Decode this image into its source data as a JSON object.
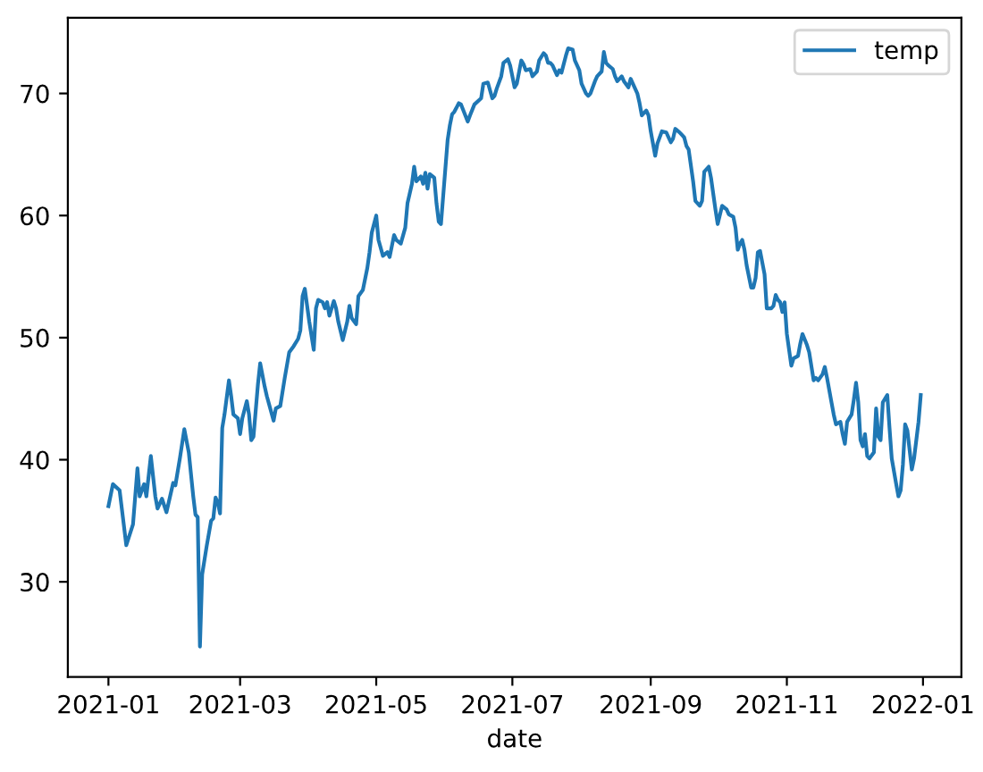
{
  "chart_data": {
    "type": "line",
    "xlabel": "date",
    "legend": "top right",
    "grid": false,
    "x": [
      "2021-01-01",
      "2021-01-03",
      "2021-01-06",
      "2021-01-09",
      "2021-01-12",
      "2021-01-14",
      "2021-01-15",
      "2021-01-17",
      "2021-01-18",
      "2021-01-20",
      "2021-01-22",
      "2021-01-23",
      "2021-01-25",
      "2021-01-27",
      "2021-01-30",
      "2021-01-31",
      "2021-02-02",
      "2021-02-04",
      "2021-02-06",
      "2021-02-08",
      "2021-02-09",
      "2021-02-10",
      "2021-02-11",
      "2021-02-12",
      "2021-02-14",
      "2021-02-16",
      "2021-02-17",
      "2021-02-18",
      "2021-02-19",
      "2021-02-20",
      "2021-02-21",
      "2021-02-22",
      "2021-02-24",
      "2021-02-25",
      "2021-02-26",
      "2021-02-28",
      "2021-03-01",
      "2021-03-02",
      "2021-03-04",
      "2021-03-05",
      "2021-03-06",
      "2021-03-07",
      "2021-03-09",
      "2021-03-10",
      "2021-03-12",
      "2021-03-13",
      "2021-03-16",
      "2021-03-17",
      "2021-03-19",
      "2021-03-21",
      "2021-03-23",
      "2021-03-25",
      "2021-03-27",
      "2021-03-28",
      "2021-03-29",
      "2021-03-30",
      "2021-04-01",
      "2021-04-03",
      "2021-04-04",
      "2021-04-05",
      "2021-04-07",
      "2021-04-08",
      "2021-04-09",
      "2021-04-10",
      "2021-04-12",
      "2021-04-13",
      "2021-04-14",
      "2021-04-16",
      "2021-04-18",
      "2021-04-19",
      "2021-04-20",
      "2021-04-22",
      "2021-04-23",
      "2021-04-25",
      "2021-04-27",
      "2021-04-28",
      "2021-04-29",
      "2021-05-01",
      "2021-05-02",
      "2021-05-04",
      "2021-05-06",
      "2021-05-07",
      "2021-05-09",
      "2021-05-10",
      "2021-05-12",
      "2021-05-14",
      "2021-05-15",
      "2021-05-17",
      "2021-05-18",
      "2021-05-19",
      "2021-05-21",
      "2021-05-22",
      "2021-05-23",
      "2021-05-24",
      "2021-05-25",
      "2021-05-27",
      "2021-05-28",
      "2021-05-29",
      "2021-05-30",
      "2021-05-31",
      "2021-06-02",
      "2021-06-03",
      "2021-06-04",
      "2021-06-05",
      "2021-06-07",
      "2021-06-08",
      "2021-06-11",
      "2021-06-12",
      "2021-06-14",
      "2021-06-17",
      "2021-06-18",
      "2021-06-20",
      "2021-06-22",
      "2021-06-23",
      "2021-06-24",
      "2021-06-26",
      "2021-06-27",
      "2021-06-29",
      "2021-06-30",
      "2021-07-02",
      "2021-07-03",
      "2021-07-05",
      "2021-07-06",
      "2021-07-07",
      "2021-07-09",
      "2021-07-10",
      "2021-07-12",
      "2021-07-13",
      "2021-07-15",
      "2021-07-16",
      "2021-07-17",
      "2021-07-18",
      "2021-07-19",
      "2021-07-21",
      "2021-07-22",
      "2021-07-23",
      "2021-07-25",
      "2021-07-26",
      "2021-07-28",
      "2021-07-29",
      "2021-07-31",
      "2021-08-01",
      "2021-08-03",
      "2021-08-04",
      "2021-08-05",
      "2021-08-07",
      "2021-08-08",
      "2021-08-10",
      "2021-08-11",
      "2021-08-12",
      "2021-08-13",
      "2021-08-15",
      "2021-08-16",
      "2021-08-17",
      "2021-08-19",
      "2021-08-20",
      "2021-08-22",
      "2021-08-23",
      "2021-08-24",
      "2021-08-26",
      "2021-08-27",
      "2021-08-28",
      "2021-08-30",
      "2021-08-31",
      "2021-09-01",
      "2021-09-03",
      "2021-09-04",
      "2021-09-06",
      "2021-09-08",
      "2021-09-10",
      "2021-09-11",
      "2021-09-12",
      "2021-09-14",
      "2021-09-16",
      "2021-09-17",
      "2021-09-18",
      "2021-09-20",
      "2021-09-21",
      "2021-09-23",
      "2021-09-24",
      "2021-09-25",
      "2021-09-27",
      "2021-09-28",
      "2021-09-30",
      "2021-10-01",
      "2021-10-03",
      "2021-10-05",
      "2021-10-06",
      "2021-10-08",
      "2021-10-09",
      "2021-10-10",
      "2021-10-11",
      "2021-10-12",
      "2021-10-13",
      "2021-10-14",
      "2021-10-16",
      "2021-10-17",
      "2021-10-18",
      "2021-10-19",
      "2021-10-20",
      "2021-10-22",
      "2021-10-23",
      "2021-10-25",
      "2021-10-26",
      "2021-10-27",
      "2021-10-28",
      "2021-10-29",
      "2021-10-30",
      "2021-10-31",
      "2021-11-01",
      "2021-11-03",
      "2021-11-04",
      "2021-11-06",
      "2021-11-07",
      "2021-11-08",
      "2021-11-10",
      "2021-11-11",
      "2021-11-13",
      "2021-11-14",
      "2021-11-15",
      "2021-11-17",
      "2021-11-18",
      "2021-11-19",
      "2021-11-21",
      "2021-11-22",
      "2021-11-23",
      "2021-11-25",
      "2021-11-26",
      "2021-11-27",
      "2021-11-28",
      "2021-11-30",
      "2021-12-01",
      "2021-12-02",
      "2021-12-03",
      "2021-12-04",
      "2021-12-05",
      "2021-12-06",
      "2021-12-07",
      "2021-12-08",
      "2021-12-10",
      "2021-12-11",
      "2021-12-12",
      "2021-12-13",
      "2021-12-14",
      "2021-12-16",
      "2021-12-17",
      "2021-12-18",
      "2021-12-20",
      "2021-12-21",
      "2021-12-22",
      "2021-12-23",
      "2021-12-24",
      "2021-12-25",
      "2021-12-27",
      "2021-12-28",
      "2021-12-29",
      "2021-12-30",
      "2021-12-31"
    ],
    "series": [
      {
        "name": "temp",
        "color": "#1f77b4",
        "values": [
          36.2,
          38.0,
          37.5,
          33.0,
          34.7,
          39.3,
          37.0,
          38.0,
          37.0,
          40.3,
          37.0,
          36.0,
          36.8,
          35.7,
          38.1,
          37.9,
          40.1,
          42.5,
          40.6,
          37.0,
          35.5,
          35.3,
          24.7,
          30.6,
          32.9,
          35.0,
          35.2,
          36.9,
          36.5,
          35.6,
          42.6,
          43.7,
          46.5,
          45.2,
          43.7,
          43.4,
          42.1,
          43.4,
          44.8,
          43.7,
          41.6,
          41.9,
          46.2,
          47.9,
          46.0,
          45.2,
          43.2,
          44.2,
          44.4,
          46.7,
          48.8,
          49.3,
          49.9,
          50.6,
          53.4,
          54.0,
          51.3,
          49.0,
          52.4,
          53.1,
          52.9,
          52.4,
          52.9,
          51.8,
          53.0,
          52.4,
          51.3,
          49.8,
          51.3,
          52.6,
          51.6,
          51.1,
          53.4,
          53.9,
          55.7,
          57.0,
          58.6,
          60.0,
          58.0,
          56.7,
          57.0,
          56.6,
          58.4,
          58.0,
          57.7,
          59.0,
          61.0,
          62.6,
          64.0,
          62.8,
          63.2,
          62.6,
          63.5,
          62.2,
          63.4,
          63.1,
          61.0,
          59.5,
          59.3,
          61.6,
          66.2,
          67.4,
          68.3,
          68.5,
          69.2,
          69.1,
          67.7,
          68.2,
          69.1,
          69.6,
          70.8,
          70.9,
          69.6,
          69.8,
          70.4,
          71.4,
          72.5,
          72.8,
          72.3,
          70.5,
          70.8,
          72.7,
          72.4,
          71.9,
          72.0,
          71.4,
          71.8,
          72.7,
          73.3,
          73.1,
          72.5,
          72.5,
          72.3,
          71.5,
          71.9,
          71.7,
          73.1,
          73.7,
          73.6,
          72.7,
          71.9,
          70.8,
          70.0,
          69.8,
          70.0,
          71.0,
          71.4,
          71.8,
          73.4,
          72.5,
          72.3,
          72.0,
          71.4,
          71.0,
          71.4,
          71.0,
          70.5,
          71.2,
          70.8,
          70.0,
          69.2,
          68.2,
          68.6,
          68.2,
          66.9,
          64.9,
          65.9,
          66.9,
          66.8,
          66.0,
          66.3,
          67.1,
          66.8,
          66.4,
          65.7,
          65.4,
          62.8,
          61.2,
          60.8,
          61.2,
          63.6,
          64.0,
          63.1,
          60.5,
          59.3,
          60.8,
          60.5,
          60.1,
          59.9,
          59.0,
          57.2,
          57.7,
          58.0,
          57.2,
          55.9,
          54.1,
          54.1,
          54.9,
          57.0,
          57.1,
          55.2,
          52.4,
          52.4,
          52.6,
          53.5,
          53.1,
          52.9,
          52.1,
          52.9,
          50.3,
          47.7,
          48.3,
          48.5,
          49.5,
          50.3,
          49.4,
          48.8,
          46.5,
          46.7,
          46.5,
          47.0,
          47.6,
          46.7,
          44.7,
          43.7,
          42.9,
          43.1,
          42.1,
          41.3,
          43.1,
          43.7,
          44.9,
          46.3,
          44.7,
          41.6,
          41.1,
          42.1,
          40.3,
          40.1,
          40.6,
          44.2,
          41.9,
          41.6,
          44.7,
          45.3,
          42.6,
          40.1,
          38.0,
          37.0,
          37.5,
          39.6,
          42.9,
          42.4,
          39.2,
          40.1,
          41.6,
          43.1,
          45.3
        ]
      }
    ],
    "xlim": [
      "2020-12-13T19:12",
      "2022-01-18T04:48"
    ],
    "xticks": [
      "2021-01",
      "2021-03",
      "2021-05",
      "2021-07",
      "2021-09",
      "2021-11",
      "2022-01"
    ],
    "ylim": [
      22.2,
      76.2
    ],
    "yticks": [
      30,
      40,
      50,
      60,
      70
    ]
  }
}
